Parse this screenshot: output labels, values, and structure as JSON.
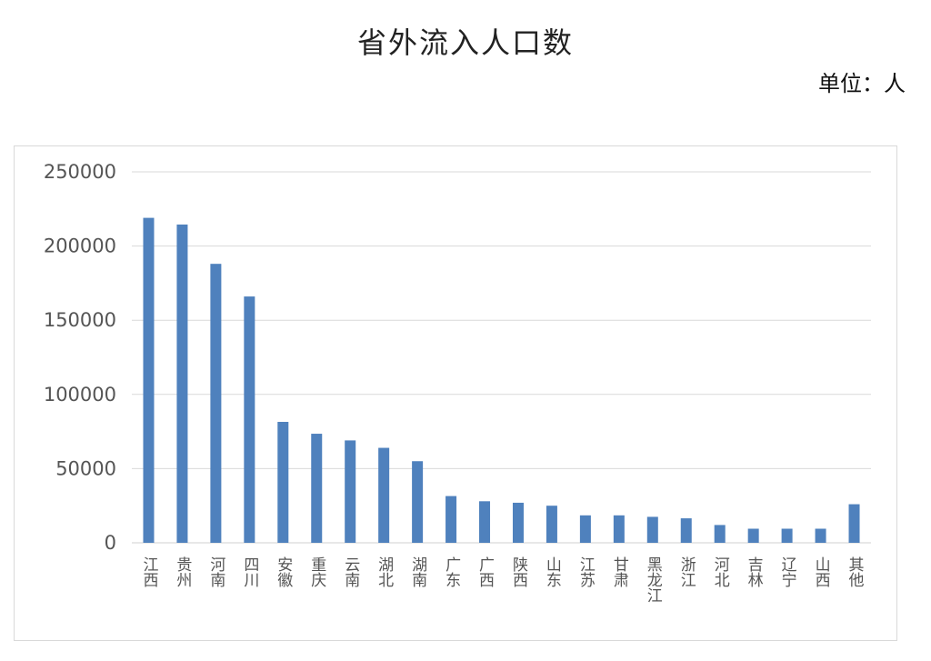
{
  "title": "省外流入人口数",
  "unit_label": "单位：人",
  "chart_data": {
    "type": "bar",
    "title": "省外流入人口数",
    "xlabel": "",
    "ylabel": "",
    "ylim": [
      0,
      250000
    ],
    "yticks": [
      0,
      50000,
      100000,
      150000,
      200000,
      250000
    ],
    "grid": true,
    "legend": "none",
    "bar_color": "#4f81bd",
    "categories": [
      "江西",
      "贵州",
      "河南",
      "四川",
      "安徽",
      "重庆",
      "云南",
      "湖北",
      "湖南",
      "广东",
      "广西",
      "陕西",
      "山东",
      "江苏",
      "甘肃",
      "黑龙江",
      "浙江",
      "河北",
      "吉林",
      "辽宁",
      "山西",
      "其他"
    ],
    "values": [
      219000,
      214500,
      188000,
      166000,
      81500,
      73500,
      69000,
      64000,
      55000,
      31500,
      28000,
      27000,
      25000,
      18500,
      18500,
      17500,
      16500,
      12000,
      9500,
      9500,
      9500,
      26000
    ]
  }
}
